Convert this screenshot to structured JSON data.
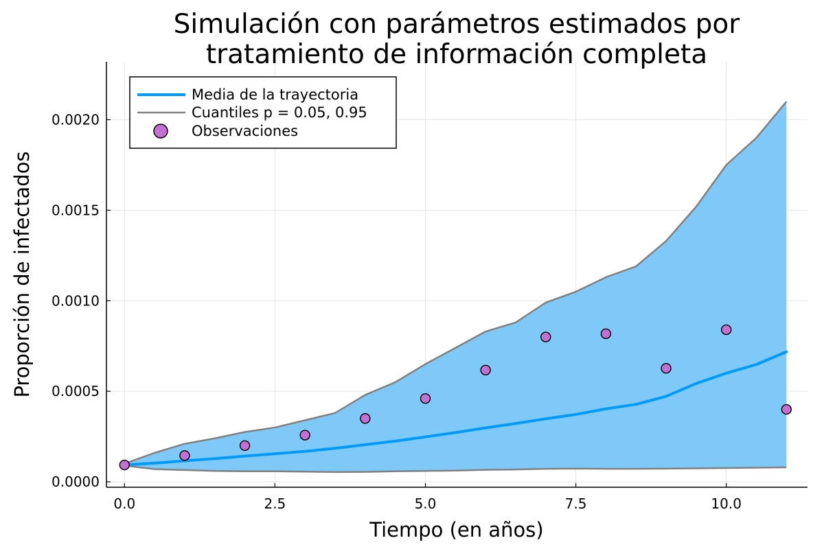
{
  "chart_data": {
    "type": "line",
    "title_lines": [
      "Simulación con parámetros estimados por",
      "tratamiento de información completa"
    ],
    "xlabel": "Tiempo (en años)",
    "ylabel": "Proporción de infectados",
    "xlim": [
      -0.3,
      11.35
    ],
    "ylim": [
      -3e-05,
      0.00232
    ],
    "xticks": [
      0.0,
      2.5,
      5.0,
      7.5,
      10.0
    ],
    "xtick_labels": [
      "0.0",
      "2.5",
      "5.0",
      "7.5",
      "10.0"
    ],
    "yticks": [
      0.0,
      0.0005,
      0.001,
      0.0015,
      0.002
    ],
    "ytick_labels": [
      "0.0000",
      "0.0005",
      "0.0010",
      "0.0015",
      "0.0020"
    ],
    "grid": true,
    "legend_position": "top-left",
    "x": [
      0,
      0.5,
      1,
      1.5,
      2,
      2.5,
      3,
      3.5,
      4,
      4.5,
      5,
      5.5,
      6,
      6.5,
      7,
      7.5,
      8,
      8.5,
      9,
      9.5,
      10,
      10.5,
      11
    ],
    "series": [
      {
        "name": "Media de la trayectoria",
        "color": "#009AF9",
        "values": [
          9.3e-05,
          0.000103,
          0.000116,
          0.000128,
          0.000142,
          0.000155,
          0.000168,
          0.000185,
          0.000205,
          0.000225,
          0.000248,
          0.000272,
          0.000298,
          0.000322,
          0.000348,
          0.000372,
          0.000403,
          0.000428,
          0.000472,
          0.000543,
          0.0006,
          0.000648,
          0.000718
        ]
      },
      {
        "name": "Cuantiles p = 0.05, 0.95",
        "color": "#808080",
        "band_fill": "#7FC9F9",
        "upper": [
          0.0001,
          0.00016,
          0.00021,
          0.00024,
          0.000275,
          0.0003,
          0.00034,
          0.00038,
          0.00048,
          0.00055,
          0.00065,
          0.00074,
          0.00083,
          0.00088,
          0.00099,
          0.00105,
          0.00113,
          0.00119,
          0.00133,
          0.00152,
          0.00175,
          0.0019,
          0.0021
        ],
        "lower": [
          9e-05,
          7e-05,
          6.5e-05,
          6e-05,
          5.8e-05,
          5.8e-05,
          5.6e-05,
          5.4e-05,
          5.5e-05,
          5.8e-05,
          6e-05,
          6.2e-05,
          6.6e-05,
          6.8e-05,
          7.2e-05,
          7.3e-05,
          7.2e-05,
          7.2e-05,
          7.3e-05,
          7.4e-05,
          7.6e-05,
          7.8e-05,
          8e-05
        ]
      }
    ],
    "observations": {
      "name": "Observaciones",
      "color": "#C271D2",
      "x": [
        0,
        1,
        2,
        3,
        4,
        5,
        6,
        7,
        8,
        9,
        10,
        11
      ],
      "y": [
        9.3e-05,
        0.000145,
        0.0002,
        0.000258,
        0.00035,
        0.00046,
        0.000617,
        0.0008,
        0.000818,
        0.000627,
        0.00084,
        0.0004
      ]
    }
  }
}
